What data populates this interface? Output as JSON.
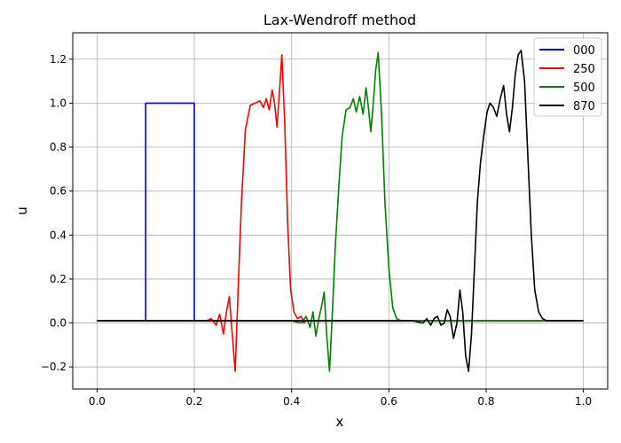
{
  "chart_data": {
    "type": "line",
    "title": "Lax-Wendroff method",
    "xlabel": "x",
    "ylabel": "u",
    "xlim": [
      -0.05,
      1.05
    ],
    "ylim": [
      -0.3,
      1.32
    ],
    "xticks": [
      0.0,
      0.2,
      0.4,
      0.6,
      0.8,
      1.0
    ],
    "xtick_labels": [
      "0.0",
      "0.2",
      "0.4",
      "0.6",
      "0.8",
      "1.0"
    ],
    "yticks": [
      -0.2,
      0.0,
      0.2,
      0.4,
      0.6,
      0.8,
      1.0,
      1.2
    ],
    "ytick_labels": [
      "−0.2",
      "0.0",
      "0.2",
      "0.4",
      "0.6",
      "0.8",
      "1.0",
      "1.2"
    ],
    "grid": true,
    "legend_position": "top-right",
    "series": [
      {
        "name": "000",
        "color": "#0000ff",
        "x": [
          0.0,
          0.1,
          0.1,
          0.2,
          0.2,
          1.0
        ],
        "y": [
          0.01,
          0.01,
          1.0,
          1.0,
          0.01,
          0.01
        ]
      },
      {
        "name": "250",
        "color": "#ff0000",
        "x": [
          0.0,
          0.225,
          0.235,
          0.245,
          0.252,
          0.26,
          0.266,
          0.272,
          0.278,
          0.284,
          0.29,
          0.297,
          0.305,
          0.315,
          0.325,
          0.335,
          0.342,
          0.348,
          0.354,
          0.36,
          0.365,
          0.37,
          0.375,
          0.38,
          0.386,
          0.392,
          0.398,
          0.405,
          0.412,
          0.42,
          0.425,
          0.43,
          1.0
        ],
        "y": [
          0.01,
          0.01,
          0.02,
          -0.01,
          0.04,
          -0.05,
          0.05,
          0.12,
          -0.05,
          -0.22,
          0.15,
          0.55,
          0.88,
          0.99,
          1.0,
          1.01,
          0.98,
          1.02,
          0.97,
          1.06,
          1.0,
          0.89,
          1.05,
          1.22,
          0.9,
          0.45,
          0.15,
          0.05,
          0.02,
          0.03,
          0.0,
          0.01,
          0.01
        ]
      },
      {
        "name": "500",
        "color": "#008000",
        "x": [
          0.0,
          0.4,
          0.42,
          0.43,
          0.438,
          0.444,
          0.45,
          0.456,
          0.462,
          0.467,
          0.472,
          0.478,
          0.484,
          0.49,
          0.497,
          0.504,
          0.512,
          0.52,
          0.527,
          0.533,
          0.54,
          0.547,
          0.553,
          0.558,
          0.563,
          0.568,
          0.573,
          0.578,
          0.585,
          0.592,
          0.6,
          0.608,
          0.616,
          0.625,
          1.0
        ],
        "y": [
          0.01,
          0.01,
          0.0,
          0.03,
          -0.02,
          0.05,
          -0.06,
          0.02,
          0.08,
          0.14,
          -0.05,
          -0.22,
          0.05,
          0.35,
          0.62,
          0.85,
          0.97,
          0.98,
          1.02,
          0.96,
          1.03,
          0.95,
          1.07,
          0.98,
          0.87,
          1.0,
          1.15,
          1.23,
          0.95,
          0.55,
          0.25,
          0.07,
          0.02,
          0.01,
          0.01
        ]
      },
      {
        "name": "870",
        "color": "#000000",
        "x": [
          0.0,
          0.65,
          0.67,
          0.678,
          0.686,
          0.693,
          0.7,
          0.707,
          0.714,
          0.72,
          0.726,
          0.733,
          0.74,
          0.746,
          0.752,
          0.758,
          0.764,
          0.77,
          0.776,
          0.782,
          0.788,
          0.795,
          0.802,
          0.808,
          0.815,
          0.822,
          0.829,
          0.836,
          0.842,
          0.848,
          0.854,
          0.86,
          0.866,
          0.872,
          0.879,
          0.886,
          0.893,
          0.9,
          0.908,
          0.916,
          0.925,
          0.935,
          1.0
        ],
        "y": [
          0.01,
          0.01,
          0.0,
          0.02,
          -0.01,
          0.02,
          0.03,
          -0.01,
          0.0,
          0.06,
          0.03,
          -0.07,
          0.0,
          0.15,
          0.05,
          -0.15,
          -0.22,
          -0.05,
          0.25,
          0.55,
          0.72,
          0.85,
          0.96,
          1.0,
          0.98,
          0.94,
          1.02,
          1.08,
          0.95,
          0.87,
          0.98,
          1.13,
          1.22,
          1.24,
          1.1,
          0.75,
          0.4,
          0.15,
          0.05,
          0.02,
          0.01,
          0.01,
          0.01
        ]
      }
    ]
  }
}
